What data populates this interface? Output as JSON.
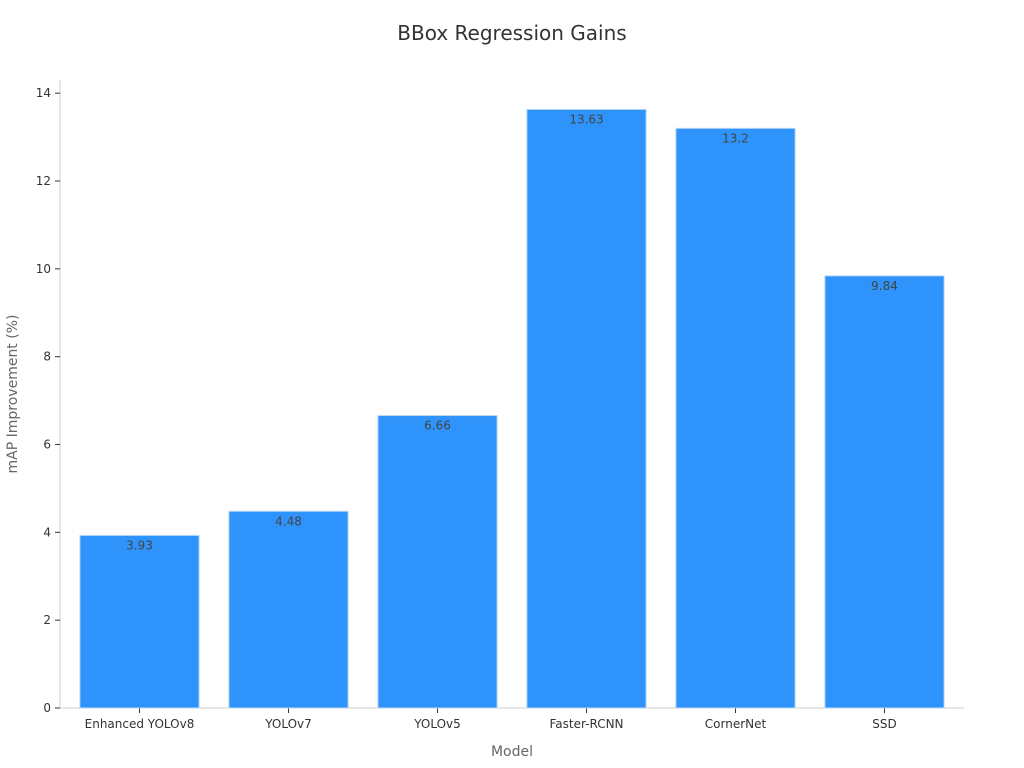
{
  "chart_data": {
    "type": "bar",
    "title": "BBox Regression Gains",
    "xlabel": "Model",
    "ylabel": "mAP Improvement (%)",
    "categories": [
      "Enhanced YOLOv8",
      "YOLOv7",
      "YOLOv5",
      "Faster-RCNN",
      "CornerNet",
      "SSD"
    ],
    "values": [
      3.93,
      4.48,
      6.66,
      13.63,
      13.2,
      9.84
    ],
    "data_labels": [
      "3.93",
      "4.48",
      "6.66",
      "13.63",
      "13.2",
      "9.84"
    ],
    "yticks": [
      0,
      2,
      4,
      6,
      8,
      10,
      12,
      14
    ],
    "ylim": [
      0,
      14.3
    ],
    "grid": false,
    "legend": "none",
    "bar_color": "#2e93fa"
  }
}
